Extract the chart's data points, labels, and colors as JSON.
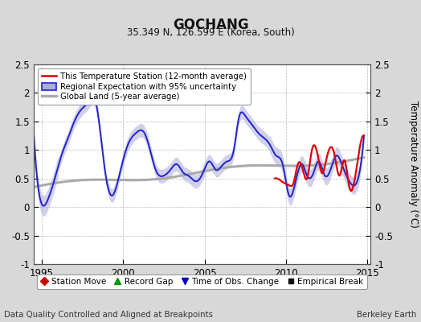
{
  "title": "GOCHANG",
  "subtitle": "35.349 N, 126.599 E (Korea, South)",
  "xlabel_left": "Data Quality Controlled and Aligned at Breakpoints",
  "xlabel_right": "Berkeley Earth",
  "ylabel": "Temperature Anomaly (°C)",
  "xlim": [
    1994.5,
    2015.2
  ],
  "ylim": [
    -1.0,
    2.5
  ],
  "yticks": [
    -1,
    -0.5,
    0,
    0.5,
    1,
    1.5,
    2,
    2.5
  ],
  "xticks": [
    1995,
    2000,
    2005,
    2010,
    2015
  ],
  "plot_bg": "#ffffff",
  "fig_bg": "#d8d8d8",
  "line_colors": {
    "station": "#dd0000",
    "regional": "#2222cc",
    "global": "#aaaaaa",
    "uncertainty_fill": "#aaaadd"
  },
  "legend_line_items": [
    {
      "label": "This Temperature Station (12-month average)",
      "color": "#dd0000",
      "lw": 1.8
    },
    {
      "label": "Regional Expectation with 95% uncertainty",
      "color": "#2222cc",
      "lw": 1.8
    },
    {
      "label": "Global Land (5-year average)",
      "color": "#aaaaaa",
      "lw": 2.5
    }
  ],
  "marker_items": [
    {
      "label": "Station Move",
      "color": "#cc0000",
      "marker": "D"
    },
    {
      "label": "Record Gap",
      "color": "#009900",
      "marker": "^"
    },
    {
      "label": "Time of Obs. Change",
      "color": "#0000cc",
      "marker": "v"
    },
    {
      "label": "Empirical Break",
      "color": "#111111",
      "marker": "s"
    }
  ]
}
